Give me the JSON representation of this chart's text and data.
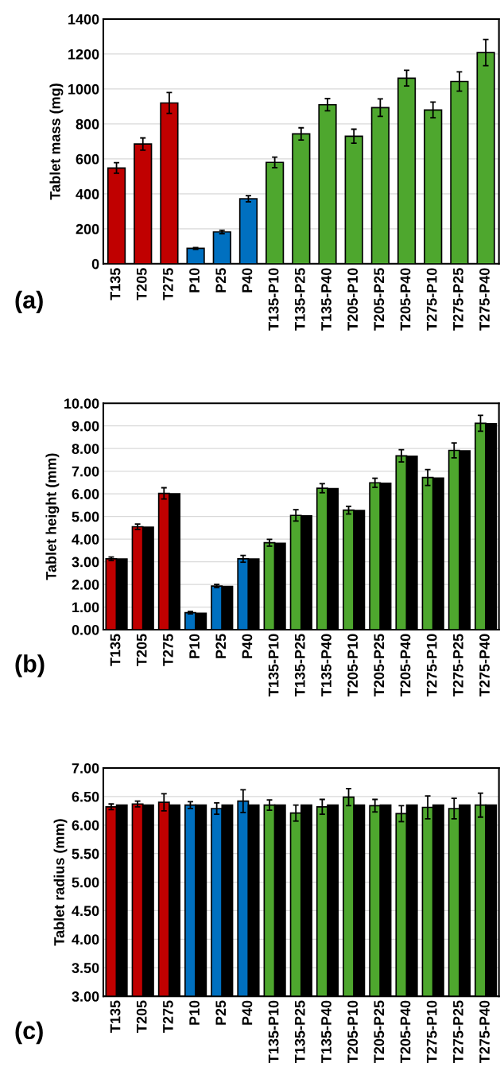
{
  "chart_data": [
    {
      "type": "bar",
      "ylabel": "Tablet mass (mg)",
      "annotations": [
        "(a)"
      ],
      "categories": [
        "T135",
        "T205",
        "T275",
        "P10",
        "P25",
        "P40",
        "T135-P10",
        "T135-P25",
        "T135-P40",
        "T205-P10",
        "T205-P25",
        "T205-P40",
        "T275-P10",
        "T275-P25",
        "T275-P40"
      ],
      "series": [
        {
          "colors": [
            "#c00000",
            "#c00000",
            "#c00000",
            "#0070c0",
            "#0070c0",
            "#0070c0",
            "#4ea72e",
            "#4ea72e",
            "#4ea72e",
            "#4ea72e",
            "#4ea72e",
            "#4ea72e",
            "#4ea72e",
            "#4ea72e",
            "#4ea72e"
          ],
          "values": [
            548,
            685,
            920,
            88,
            182,
            372,
            580,
            743,
            910,
            730,
            893,
            1062,
            880,
            1043,
            1208
          ],
          "errors": [
            30,
            35,
            60,
            5,
            10,
            18,
            30,
            35,
            35,
            40,
            50,
            45,
            45,
            55,
            75
          ]
        }
      ],
      "ylim": [
        0,
        1400
      ],
      "yticks": [
        0,
        200,
        400,
        600,
        800,
        1000,
        1200,
        1400
      ],
      "grid": "y"
    },
    {
      "type": "bar",
      "ylabel": "Tablet height (mm)",
      "annotations": [
        "(b)"
      ],
      "categories": [
        "T135",
        "T205",
        "T275",
        "P10",
        "P25",
        "P40",
        "T135-P10",
        "T135-P25",
        "T135-P40",
        "T205-P10",
        "T205-P25",
        "T205-P40",
        "T275-P10",
        "T275-P25",
        "T275-P40"
      ],
      "series": [
        {
          "colors": [
            "#c00000",
            "#c00000",
            "#c00000",
            "#0070c0",
            "#0070c0",
            "#0070c0",
            "#4ea72e",
            "#4ea72e",
            "#4ea72e",
            "#4ea72e",
            "#4ea72e",
            "#4ea72e",
            "#4ea72e",
            "#4ea72e",
            "#4ea72e"
          ],
          "values": [
            3.13,
            4.55,
            6.02,
            0.75,
            1.93,
            3.13,
            3.84,
            5.05,
            6.25,
            5.28,
            6.49,
            7.68,
            6.72,
            7.92,
            9.12
          ],
          "errors": [
            0.08,
            0.12,
            0.25,
            0.05,
            0.07,
            0.15,
            0.15,
            0.25,
            0.2,
            0.17,
            0.2,
            0.27,
            0.35,
            0.33,
            0.35
          ]
        },
        {
          "color": "#000000",
          "values": [
            3.12,
            4.53,
            6.0,
            0.73,
            1.91,
            3.12,
            3.82,
            5.03,
            6.23,
            5.27,
            6.47,
            7.66,
            6.7,
            7.9,
            9.1
          ]
        }
      ],
      "ylim": [
        0,
        10
      ],
      "yticks": [
        {
          "value": 0,
          "label": "0.00"
        },
        {
          "value": 1,
          "label": "1.00"
        },
        {
          "value": 2,
          "label": "2.00"
        },
        {
          "value": 3,
          "label": "3.00"
        },
        {
          "value": 4,
          "label": "4.00"
        },
        {
          "value": 5,
          "label": "5.00"
        },
        {
          "value": 6,
          "label": "6.00"
        },
        {
          "value": 7,
          "label": "7.00"
        },
        {
          "value": 8,
          "label": "8.00"
        },
        {
          "value": 9,
          "label": "9.00"
        },
        {
          "value": 10,
          "label": "10.00"
        }
      ],
      "grid": "y"
    },
    {
      "type": "bar",
      "ylabel": "Tablet radius (mm)",
      "annotations": [
        "(c)"
      ],
      "categories": [
        "T135",
        "T205",
        "T275",
        "P10",
        "P25",
        "P40",
        "T135-P10",
        "T135-P25",
        "T135-P40",
        "T205-P10",
        "T205-P25",
        "T205-P40",
        "T275-P10",
        "T275-P25",
        "T275-P40"
      ],
      "series": [
        {
          "colors": [
            "#c00000",
            "#c00000",
            "#c00000",
            "#0070c0",
            "#0070c0",
            "#0070c0",
            "#4ea72e",
            "#4ea72e",
            "#4ea72e",
            "#4ea72e",
            "#4ea72e",
            "#4ea72e",
            "#4ea72e",
            "#4ea72e",
            "#4ea72e"
          ],
          "values": [
            6.32,
            6.37,
            6.4,
            6.35,
            6.29,
            6.42,
            6.35,
            6.21,
            6.32,
            6.49,
            6.34,
            6.2,
            6.31,
            6.29,
            6.35
          ],
          "errors": [
            0.05,
            0.05,
            0.15,
            0.06,
            0.1,
            0.2,
            0.09,
            0.14,
            0.13,
            0.15,
            0.11,
            0.14,
            0.2,
            0.18,
            0.21
          ]
        },
        {
          "color": "#000000",
          "values": [
            6.35,
            6.35,
            6.35,
            6.35,
            6.35,
            6.35,
            6.35,
            6.35,
            6.35,
            6.35,
            6.35,
            6.35,
            6.35,
            6.35,
            6.35
          ]
        }
      ],
      "ylim": [
        3,
        7
      ],
      "yticks": [
        {
          "value": 3,
          "label": "3.00"
        },
        {
          "value": 3.5,
          "label": "3.50"
        },
        {
          "value": 4,
          "label": "4.00"
        },
        {
          "value": 4.5,
          "label": "4.50"
        },
        {
          "value": 5,
          "label": "5.00"
        },
        {
          "value": 5.5,
          "label": "5.50"
        },
        {
          "value": 6,
          "label": "6.00"
        },
        {
          "value": 6.5,
          "label": "6.50"
        },
        {
          "value": 7,
          "label": "7.00"
        }
      ],
      "grid": "y"
    }
  ]
}
